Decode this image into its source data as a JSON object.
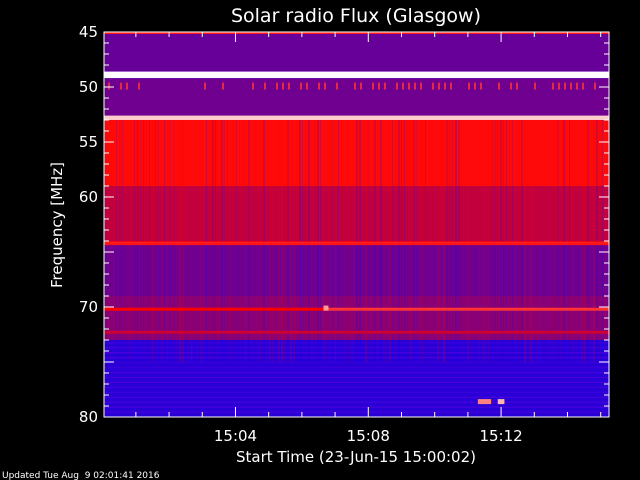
{
  "chart_data": {
    "type": "heatmap",
    "title": "Solar radio Flux (Glasgow)",
    "xlabel": "Start Time (23-Jun-15 15:00:02)",
    "ylabel": "Frequency [MHz]",
    "x_tick_labels": [
      "15:04",
      "15:08",
      "15:12"
    ],
    "x_tick_minutes": [
      4,
      8,
      12
    ],
    "xlim_minutes": [
      0.04,
      15.25
    ],
    "y_tick_labels": [
      "45",
      "50",
      "55",
      "60",
      "",
      "70",
      "",
      "80"
    ],
    "y_tick_values": [
      45,
      50,
      55,
      60,
      65,
      70,
      75,
      80
    ],
    "ylim": [
      45,
      80
    ],
    "y_inverted": true,
    "grid": false,
    "colormap": [
      "#0000ff",
      "#ff0000",
      "#ffffff"
    ],
    "frequency_bands": [
      {
        "from": 45.0,
        "to": 45.2,
        "level": 0.55
      },
      {
        "from": 45.2,
        "to": 48.6,
        "level": 0.2
      },
      {
        "from": 48.6,
        "to": 49.2,
        "level": 1.0
      },
      {
        "from": 49.2,
        "to": 52.6,
        "level": 0.22
      },
      {
        "from": 52.6,
        "to": 53.0,
        "level": 0.85
      },
      {
        "from": 53.0,
        "to": 59.0,
        "level": 0.52
      },
      {
        "from": 59.0,
        "to": 64.0,
        "level": 0.38
      },
      {
        "from": 64.0,
        "to": 64.4,
        "level": 0.46
      },
      {
        "from": 64.4,
        "to": 69.0,
        "level": 0.22
      },
      {
        "from": 69.0,
        "to": 73.0,
        "level": 0.27
      },
      {
        "from": 73.0,
        "to": 80.0,
        "level": 0.08
      }
    ],
    "emission_lines": [
      {
        "freq": 48.9,
        "t_start": 0.04,
        "t_end": 15.25,
        "level": 1.0
      },
      {
        "freq": 52.8,
        "t_start": 0.04,
        "t_end": 15.25,
        "level": 0.9
      },
      {
        "freq": 64.2,
        "t_start": 0.04,
        "t_end": 15.25,
        "level": 0.55
      },
      {
        "freq": 70.2,
        "t_start": 0.04,
        "t_end": 6.7,
        "level": 0.5
      },
      {
        "freq": 70.2,
        "t_start": 6.7,
        "t_end": 15.25,
        "level": 0.6
      },
      {
        "freq": 72.3,
        "t_start": 0.04,
        "t_end": 15.25,
        "level": 0.4
      }
    ],
    "bursts": [
      {
        "freq": 78.6,
        "t_start": 11.3,
        "t_end": 11.7,
        "level": 0.75
      },
      {
        "freq": 78.6,
        "t_start": 11.9,
        "t_end": 12.1,
        "level": 0.85
      },
      {
        "freq": 70.1,
        "t_start": 6.65,
        "t_end": 6.8,
        "level": 0.8
      }
    ]
  },
  "footer": {
    "updated": "Updated Tue Aug  9 02:01:41 2016"
  }
}
